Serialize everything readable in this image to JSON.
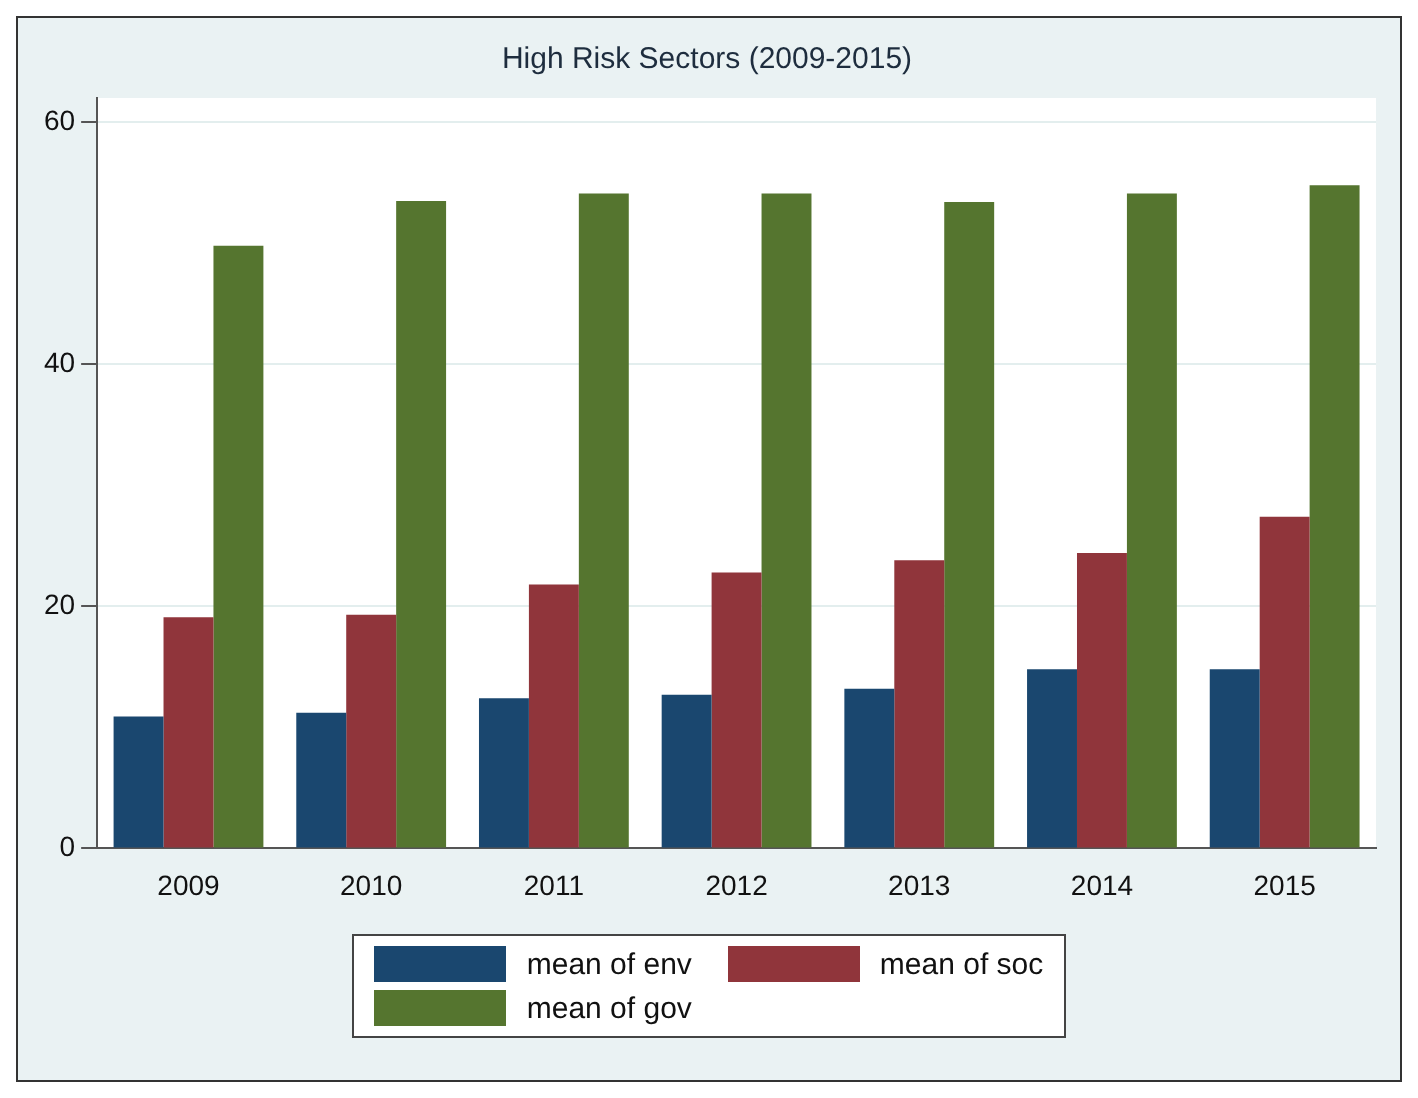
{
  "chart_data": {
    "type": "bar",
    "title": "High Risk Sectors (2009-2015)",
    "categories": [
      "2009",
      "2010",
      "2011",
      "2012",
      "2013",
      "2014",
      "2015"
    ],
    "series": [
      {
        "name": "mean of env",
        "color": "#1a476f",
        "values": [
          10.9,
          11.2,
          12.4,
          12.7,
          13.2,
          14.8,
          14.8
        ]
      },
      {
        "name": "mean of soc",
        "color": "#90353b",
        "values": [
          19.1,
          19.3,
          21.8,
          22.8,
          23.8,
          24.4,
          27.4
        ]
      },
      {
        "name": "mean of gov",
        "color": "#55752f",
        "values": [
          49.8,
          53.5,
          54.1,
          54.1,
          53.4,
          54.1,
          54.8
        ]
      }
    ],
    "ylim": [
      0,
      62
    ],
    "yticks": [
      0,
      20,
      40,
      60
    ],
    "grid": "y",
    "legend": "bottom"
  }
}
